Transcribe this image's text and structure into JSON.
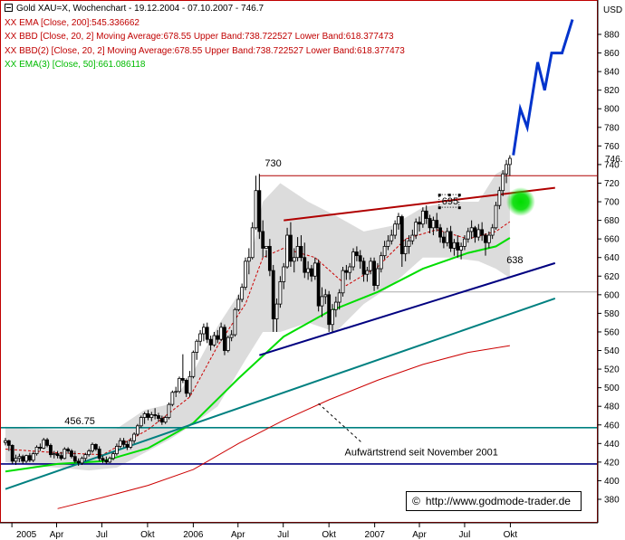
{
  "header": {
    "title": "Gold XAU=X, Wochenchart - 19.12.2004 - 07.10.2007 - 746.7",
    "ema200": "XX EMA [Close, 200]:545.336662",
    "bbd1": "XX BBD [Close, 20, 2] Moving Average:678.55 Upper Band:738.722527 Lower Band:618.377473",
    "bbd2": "XX BBD(2) [Close, 20, 2] Moving Average:678.55 Upper Band:738.722527 Lower Band:618.377473",
    "ema50": "XX EMA(3) [Close, 50]:661.086118"
  },
  "copyright": {
    "symbol": "©",
    "text": "http://www.godmode-trader.de"
  },
  "colors": {
    "candle": "#000000",
    "bollinger_fill": "#dcdcdc",
    "ema200": "#cc0000",
    "ema50": "#00dd00",
    "trend_navy": "#000080",
    "trend_teal": "#008080",
    "projection": "#0033cc",
    "resistance": "#b00000",
    "current_price_marker": "#00dd00"
  },
  "chart_data": {
    "type": "candlestick",
    "y_axis": {
      "label": "USD",
      "min": 370,
      "max": 900,
      "ticks": [
        380,
        400,
        420,
        440,
        460,
        480,
        500,
        520,
        540,
        560,
        580,
        600,
        620,
        640,
        660,
        680,
        700,
        720,
        740,
        760,
        780,
        800,
        820,
        840,
        860,
        880
      ],
      "side": "right"
    },
    "x_axis": {
      "ticks": [
        "2005",
        "Apr",
        "Jul",
        "Okt",
        "2006",
        "Apr",
        "Jul",
        "Okt",
        "2007",
        "Apr",
        "Jul",
        "Okt"
      ]
    },
    "last_price_label": "746.",
    "annotations": [
      {
        "text": "730",
        "value": 730
      },
      {
        "text": "695",
        "value": 695
      },
      {
        "text": "638",
        "value": 638
      },
      {
        "text": "456.75",
        "value": 456.75
      },
      {
        "text": "Aufwärtstrend seit November 2001"
      }
    ],
    "horizontal_levels": [
      {
        "value": 728,
        "color": "#b00000"
      },
      {
        "value": 603,
        "color": "#aaaaaa"
      },
      {
        "value": 457,
        "color": "#008080"
      },
      {
        "value": 418,
        "color": "#000080"
      }
    ],
    "trendlines": [
      {
        "name": "Aufwärtstrend seit November 2001",
        "from": [
          "2004-12-19",
          391
        ],
        "to": [
          "2007-12-30",
          596
        ],
        "color": "#008080"
      },
      {
        "from": [
          "2006-05-14",
          535
        ],
        "to": [
          "2007-12-30",
          634
        ],
        "color": "#000080"
      },
      {
        "from": [
          "2006-07-02",
          680
        ],
        "to": [
          "2007-12-30",
          715
        ],
        "color": "#b00000"
      }
    ],
    "projection": [
      [
        "2007-10-07",
        750
      ],
      [
        "2007-10-21",
        800
      ],
      [
        "2007-11-04",
        780
      ],
      [
        "2007-11-25",
        850
      ],
      [
        "2007-12-09",
        820
      ],
      [
        "2007-12-23",
        860
      ],
      [
        "2008-01-13",
        860
      ],
      [
        "2008-02-03",
        896
      ]
    ],
    "series_keys": [
      "date",
      "open",
      "high",
      "low",
      "close"
    ],
    "ohlc": [
      [
        "2004-12-19",
        441,
        446,
        438,
        443
      ],
      [
        "2004-12-26",
        443,
        444,
        432,
        438
      ],
      [
        "2005-01-02",
        438,
        439,
        418,
        421
      ],
      [
        "2005-01-09",
        421,
        428,
        417,
        424
      ],
      [
        "2005-01-16",
        424,
        429,
        420,
        426
      ],
      [
        "2005-01-23",
        426,
        428,
        418,
        421
      ],
      [
        "2005-01-30",
        421,
        428,
        419,
        427
      ],
      [
        "2005-02-06",
        427,
        430,
        420,
        422
      ],
      [
        "2005-02-13",
        422,
        431,
        420,
        429
      ],
      [
        "2005-02-20",
        429,
        438,
        427,
        436
      ],
      [
        "2005-02-27",
        436,
        440,
        432,
        435
      ],
      [
        "2005-03-06",
        435,
        446,
        434,
        444
      ],
      [
        "2005-03-13",
        444,
        446,
        436,
        438
      ],
      [
        "2005-03-20",
        438,
        440,
        425,
        428
      ],
      [
        "2005-03-27",
        428,
        432,
        424,
        429
      ],
      [
        "2005-04-03",
        429,
        432,
        424,
        427
      ],
      [
        "2005-04-10",
        427,
        431,
        422,
        424
      ],
      [
        "2005-04-17",
        424,
        436,
        423,
        434
      ],
      [
        "2005-04-24",
        434,
        436,
        429,
        432
      ],
      [
        "2005-05-01",
        432,
        434,
        424,
        426
      ],
      [
        "2005-05-08",
        426,
        432,
        419,
        421
      ],
      [
        "2005-05-15",
        421,
        424,
        416,
        419
      ],
      [
        "2005-05-22",
        419,
        426,
        417,
        424
      ],
      [
        "2005-05-29",
        424,
        430,
        421,
        428
      ],
      [
        "2005-06-05",
        428,
        434,
        426,
        432
      ],
      [
        "2005-06-12",
        432,
        441,
        430,
        439
      ],
      [
        "2005-06-19",
        439,
        440,
        432,
        434
      ],
      [
        "2005-06-26",
        434,
        437,
        421,
        424
      ],
      [
        "2005-07-03",
        424,
        427,
        419,
        422
      ],
      [
        "2005-07-10",
        422,
        426,
        418,
        420
      ],
      [
        "2005-07-17",
        420,
        426,
        419,
        424
      ],
      [
        "2005-07-24",
        424,
        431,
        422,
        429
      ],
      [
        "2005-07-31",
        429,
        440,
        427,
        437
      ],
      [
        "2005-08-07",
        437,
        446,
        435,
        443
      ],
      [
        "2005-08-14",
        443,
        446,
        436,
        439
      ],
      [
        "2005-08-21",
        439,
        443,
        433,
        436
      ],
      [
        "2005-08-28",
        436,
        446,
        434,
        443
      ],
      [
        "2005-09-04",
        443,
        452,
        440,
        450
      ],
      [
        "2005-09-11",
        450,
        461,
        448,
        459
      ],
      [
        "2005-09-18",
        459,
        470,
        457,
        468
      ],
      [
        "2005-09-25",
        468,
        474,
        461,
        472
      ],
      [
        "2005-10-02",
        472,
        476,
        465,
        468
      ],
      [
        "2005-10-09",
        468,
        474,
        464,
        471
      ],
      [
        "2005-10-16",
        471,
        478,
        466,
        470
      ],
      [
        "2005-10-23",
        470,
        473,
        463,
        467
      ],
      [
        "2005-10-30",
        467,
        470,
        460,
        463
      ],
      [
        "2005-11-06",
        463,
        470,
        461,
        468
      ],
      [
        "2005-11-13",
        468,
        484,
        466,
        482
      ],
      [
        "2005-11-20",
        482,
        497,
        480,
        495
      ],
      [
        "2005-11-27",
        495,
        501,
        490,
        496
      ],
      [
        "2005-12-04",
        496,
        512,
        494,
        510
      ],
      [
        "2005-12-11",
        510,
        536,
        505,
        508
      ],
      [
        "2005-12-18",
        508,
        510,
        490,
        494
      ],
      [
        "2005-12-25",
        494,
        518,
        490,
        512
      ],
      [
        "2006-01-01",
        512,
        540,
        510,
        538
      ],
      [
        "2006-01-08",
        538,
        552,
        530,
        550
      ],
      [
        "2006-01-15",
        550,
        562,
        545,
        558
      ],
      [
        "2006-01-22",
        558,
        569,
        550,
        565
      ],
      [
        "2006-01-29",
        565,
        570,
        548,
        552
      ],
      [
        "2006-02-05",
        552,
        556,
        540,
        546
      ],
      [
        "2006-02-12",
        546,
        560,
        544,
        556
      ],
      [
        "2006-02-19",
        556,
        562,
        548,
        552
      ],
      [
        "2006-02-26",
        552,
        570,
        550,
        565
      ],
      [
        "2006-03-05",
        565,
        568,
        535,
        540
      ],
      [
        "2006-03-12",
        540,
        556,
        538,
        554
      ],
      [
        "2006-03-19",
        554,
        562,
        550,
        557
      ],
      [
        "2006-03-26",
        557,
        586,
        555,
        584
      ],
      [
        "2006-04-02",
        584,
        600,
        582,
        595
      ],
      [
        "2006-04-09",
        595,
        612,
        592,
        608
      ],
      [
        "2006-04-16",
        608,
        640,
        605,
        636
      ],
      [
        "2006-04-23",
        636,
        650,
        622,
        640
      ],
      [
        "2006-04-30",
        640,
        678,
        638,
        672
      ],
      [
        "2006-05-07",
        672,
        728,
        670,
        712
      ],
      [
        "2006-05-14",
        712,
        730,
        660,
        668
      ],
      [
        "2006-05-21",
        668,
        680,
        640,
        650
      ],
      [
        "2006-05-28",
        650,
        648,
        640,
        652
      ],
      [
        "2006-06-04",
        652,
        660,
        620,
        626
      ],
      [
        "2006-06-11",
        626,
        632,
        560,
        574
      ],
      [
        "2006-06-18",
        574,
        596,
        560,
        590
      ],
      [
        "2006-06-25",
        590,
        620,
        586,
        614
      ],
      [
        "2006-07-02",
        614,
        634,
        606,
        630
      ],
      [
        "2006-07-09",
        630,
        672,
        628,
        664
      ],
      [
        "2006-07-16",
        664,
        678,
        630,
        636
      ],
      [
        "2006-07-23",
        636,
        650,
        624,
        640
      ],
      [
        "2006-07-30",
        640,
        662,
        636,
        652
      ],
      [
        "2006-08-06",
        652,
        664,
        636,
        640
      ],
      [
        "2006-08-13",
        640,
        656,
        618,
        624
      ],
      [
        "2006-08-20",
        624,
        636,
        616,
        628
      ],
      [
        "2006-08-27",
        628,
        632,
        614,
        620
      ],
      [
        "2006-09-03",
        620,
        640,
        616,
        634
      ],
      [
        "2006-09-10",
        634,
        638,
        582,
        588
      ],
      [
        "2006-09-17",
        588,
        608,
        576,
        598
      ],
      [
        "2006-09-24",
        598,
        606,
        590,
        600
      ],
      [
        "2006-10-01",
        600,
        604,
        560,
        568
      ],
      [
        "2006-10-08",
        568,
        590,
        560,
        584
      ],
      [
        "2006-10-15",
        584,
        598,
        576,
        592
      ],
      [
        "2006-10-22",
        592,
        606,
        584,
        602
      ],
      [
        "2006-10-29",
        602,
        630,
        598,
        626
      ],
      [
        "2006-11-05",
        626,
        632,
        616,
        624
      ],
      [
        "2006-11-12",
        624,
        634,
        616,
        630
      ],
      [
        "2006-11-19",
        630,
        650,
        626,
        646
      ],
      [
        "2006-11-26",
        646,
        652,
        636,
        642
      ],
      [
        "2006-12-03",
        642,
        648,
        628,
        636
      ],
      [
        "2006-12-10",
        636,
        640,
        614,
        622
      ],
      [
        "2006-12-17",
        622,
        630,
        614,
        626
      ],
      [
        "2006-12-24",
        626,
        640,
        622,
        636
      ],
      [
        "2006-12-31",
        636,
        640,
        604,
        610
      ],
      [
        "2007-01-07",
        610,
        634,
        606,
        628
      ],
      [
        "2007-01-14",
        628,
        646,
        624,
        642
      ],
      [
        "2007-01-21",
        642,
        658,
        638,
        652
      ],
      [
        "2007-01-28",
        652,
        664,
        648,
        658
      ],
      [
        "2007-02-04",
        658,
        670,
        654,
        664
      ],
      [
        "2007-02-11",
        664,
        680,
        660,
        676
      ],
      [
        "2007-02-18",
        676,
        688,
        670,
        684
      ],
      [
        "2007-02-25",
        684,
        686,
        630,
        644
      ],
      [
        "2007-03-04",
        644,
        660,
        636,
        652
      ],
      [
        "2007-03-11",
        652,
        664,
        644,
        658
      ],
      [
        "2007-03-18",
        658,
        670,
        654,
        664
      ],
      [
        "2007-03-25",
        664,
        682,
        660,
        678
      ],
      [
        "2007-04-01",
        678,
        684,
        668,
        676
      ],
      [
        "2007-04-08",
        676,
        694,
        672,
        690
      ],
      [
        "2007-04-15",
        690,
        696,
        676,
        682
      ],
      [
        "2007-04-22",
        682,
        686,
        666,
        672
      ],
      [
        "2007-04-29",
        672,
        684,
        664,
        680
      ],
      [
        "2007-05-06",
        680,
        688,
        668,
        672
      ],
      [
        "2007-05-13",
        672,
        676,
        656,
        662
      ],
      [
        "2007-05-20",
        662,
        668,
        650,
        656
      ],
      [
        "2007-05-27",
        656,
        672,
        652,
        668
      ],
      [
        "2007-06-03",
        668,
        674,
        646,
        650
      ],
      [
        "2007-06-10",
        650,
        660,
        642,
        656
      ],
      [
        "2007-06-17",
        656,
        664,
        640,
        648
      ],
      [
        "2007-06-24",
        648,
        656,
        638,
        652
      ],
      [
        "2007-07-01",
        652,
        664,
        648,
        660
      ],
      [
        "2007-07-08",
        660,
        672,
        656,
        668
      ],
      [
        "2007-07-15",
        668,
        680,
        660,
        672
      ],
      [
        "2007-07-22",
        672,
        674,
        656,
        662
      ],
      [
        "2007-07-29",
        662,
        676,
        658,
        670
      ],
      [
        "2007-08-05",
        670,
        678,
        658,
        664
      ],
      [
        "2007-08-12",
        664,
        666,
        642,
        656
      ],
      [
        "2007-08-19",
        656,
        668,
        650,
        664
      ],
      [
        "2007-08-26",
        664,
        676,
        660,
        672
      ],
      [
        "2007-09-02",
        672,
        700,
        670,
        696
      ],
      [
        "2007-09-09",
        696,
        716,
        692,
        712
      ],
      [
        "2007-09-16",
        712,
        734,
        706,
        730
      ],
      [
        "2007-09-23",
        730,
        745,
        720,
        740
      ],
      [
        "2007-09-30",
        740,
        750,
        728,
        746.7
      ]
    ],
    "bollinger_bands": {
      "dates": [
        "2004-12-19",
        "2005-02-06",
        "2005-04-03",
        "2005-06-05",
        "2005-07-31",
        "2005-09-25",
        "2005-11-13",
        "2005-12-25",
        "2006-02-19",
        "2006-04-16",
        "2006-05-21",
        "2006-06-25",
        "2006-08-20",
        "2006-10-15",
        "2006-12-10",
        "2007-02-04",
        "2007-04-08",
        "2007-06-03",
        "2007-07-29",
        "2007-09-02",
        "2007-09-30"
      ],
      "upper": [
        458,
        456,
        455,
        455,
        456,
        476,
        482,
        510,
        566,
        612,
        700,
        720,
        700,
        685,
        668,
        674,
        694,
        700,
        700,
        730,
        738
      ],
      "lower": [
        420,
        416,
        414,
        411,
        414,
        430,
        444,
        458,
        480,
        530,
        560,
        560,
        570,
        560,
        590,
        610,
        640,
        640,
        636,
        628,
        618
      ]
    },
    "ema200_series": {
      "dates": [
        "2005-04-03",
        "2005-07-03",
        "2005-10-02",
        "2006-01-01",
        "2006-04-02",
        "2006-07-02",
        "2006-10-01",
        "2007-01-07",
        "2007-04-08",
        "2007-07-08",
        "2007-09-30"
      ],
      "values": [
        370,
        382,
        395,
        412,
        440,
        465,
        487,
        508,
        525,
        538,
        545.3
      ]
    },
    "ema50_series": {
      "dates": [
        "2004-12-19",
        "2005-04-03",
        "2005-07-03",
        "2005-10-02",
        "2006-01-01",
        "2006-04-02",
        "2006-07-02",
        "2006-10-01",
        "2007-01-07",
        "2007-04-08",
        "2007-07-08",
        "2007-09-02",
        "2007-09-30"
      ],
      "values": [
        410,
        418,
        421,
        435,
        462,
        510,
        555,
        582,
        603,
        628,
        645,
        652,
        661.1
      ]
    },
    "ma20_series": {
      "dates": [
        "2004-12-19",
        "2005-04-03",
        "2005-07-03",
        "2005-10-02",
        "2005-12-25",
        "2006-02-19",
        "2006-04-16",
        "2006-05-21",
        "2006-07-02",
        "2006-09-03",
        "2006-11-05",
        "2007-01-07",
        "2007-03-04",
        "2007-05-06",
        "2007-07-08",
        "2007-09-02",
        "2007-09-30"
      ],
      "values": [
        434,
        430,
        428,
        455,
        490,
        545,
        590,
        640,
        650,
        640,
        610,
        630,
        660,
        670,
        660,
        668,
        678.55
      ]
    }
  }
}
